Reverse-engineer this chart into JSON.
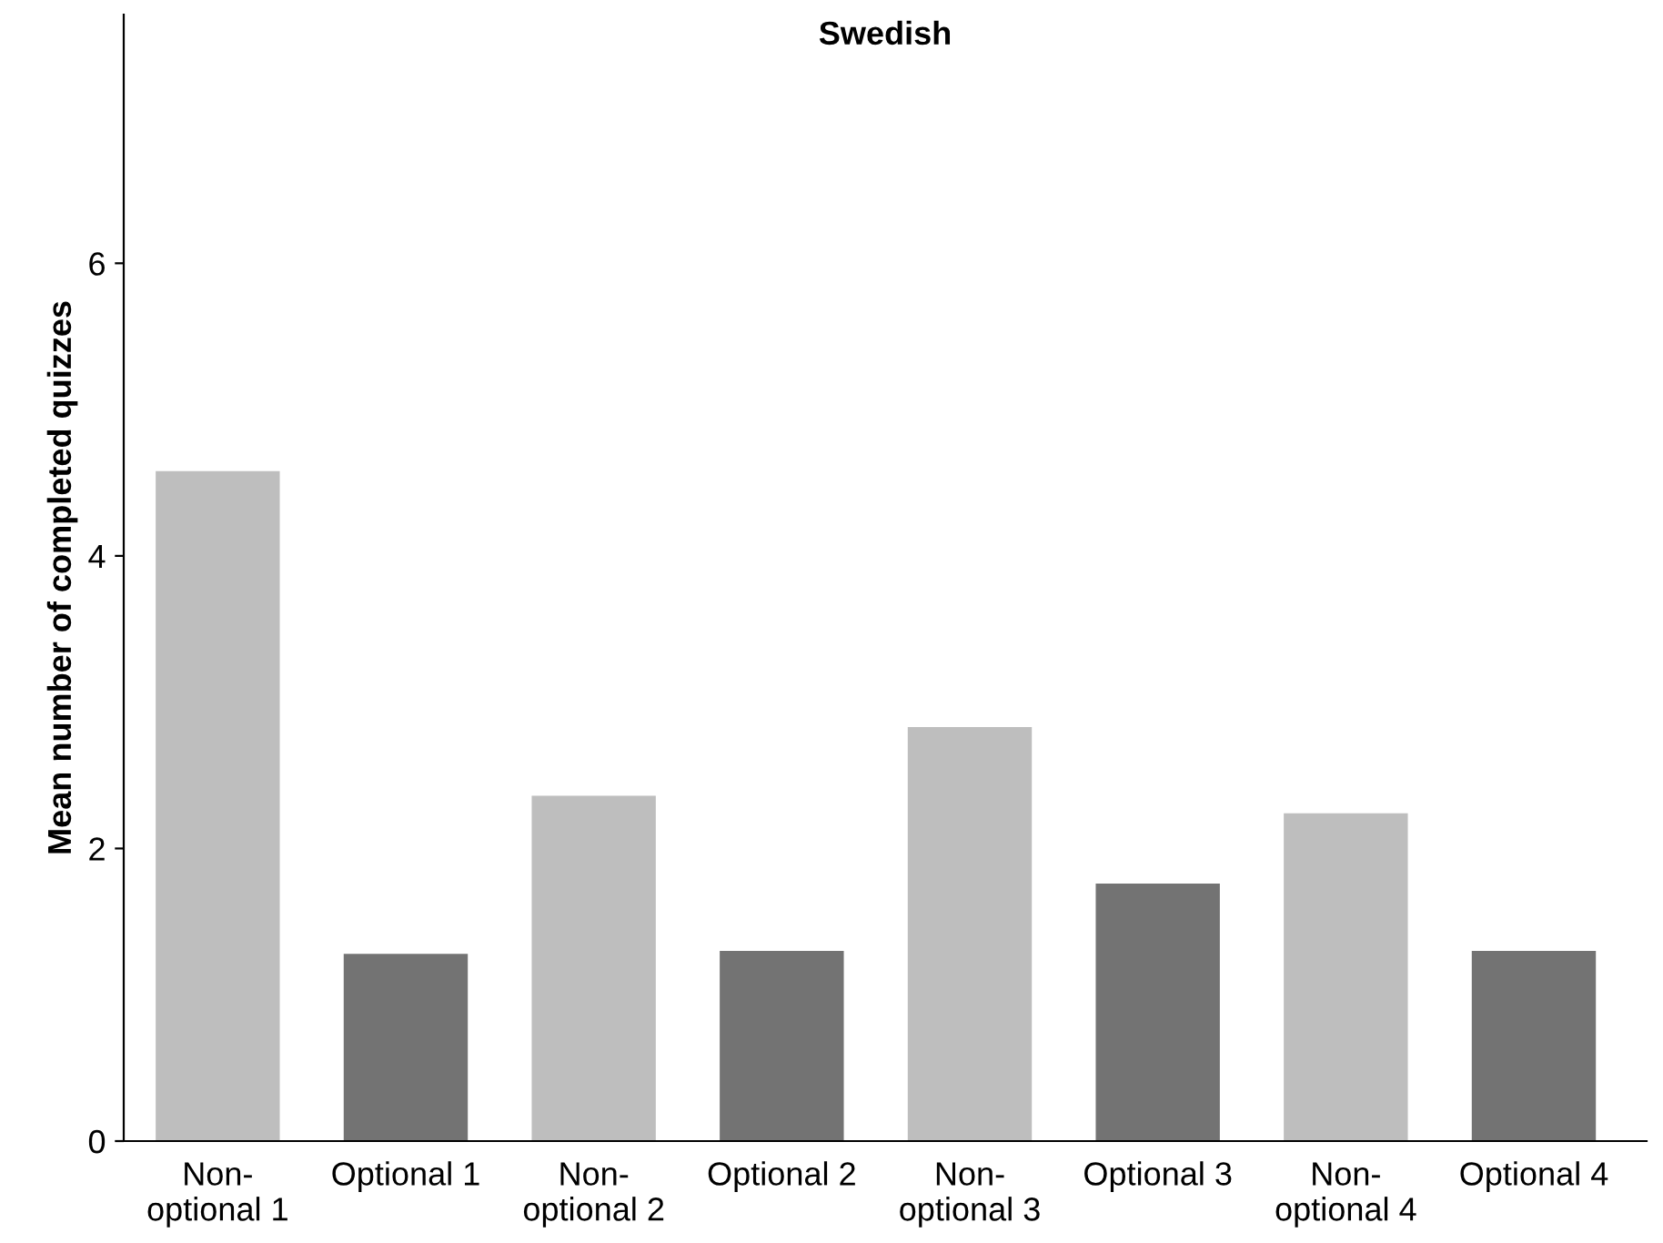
{
  "chart_data": {
    "type": "bar",
    "title": "Swedish",
    "ylabel": "Mean number of completed quizzes",
    "categories": [
      "Non-\noptional 1",
      "Optional 1",
      "Non-\noptional 2",
      "Optional 2",
      "Non-\noptional 3",
      "Optional 3",
      "Non-\noptional 4",
      "Optional 4"
    ],
    "values": [
      4.58,
      1.28,
      2.36,
      1.3,
      2.83,
      1.76,
      2.24,
      1.3
    ],
    "colors": [
      "#bebebe",
      "#737373",
      "#bebebe",
      "#737373",
      "#bebebe",
      "#737373",
      "#bebebe",
      "#737373"
    ],
    "ylim": [
      0,
      7.7
    ],
    "yticks": [
      0,
      2,
      4,
      6
    ],
    "grid": false,
    "legend": false
  }
}
